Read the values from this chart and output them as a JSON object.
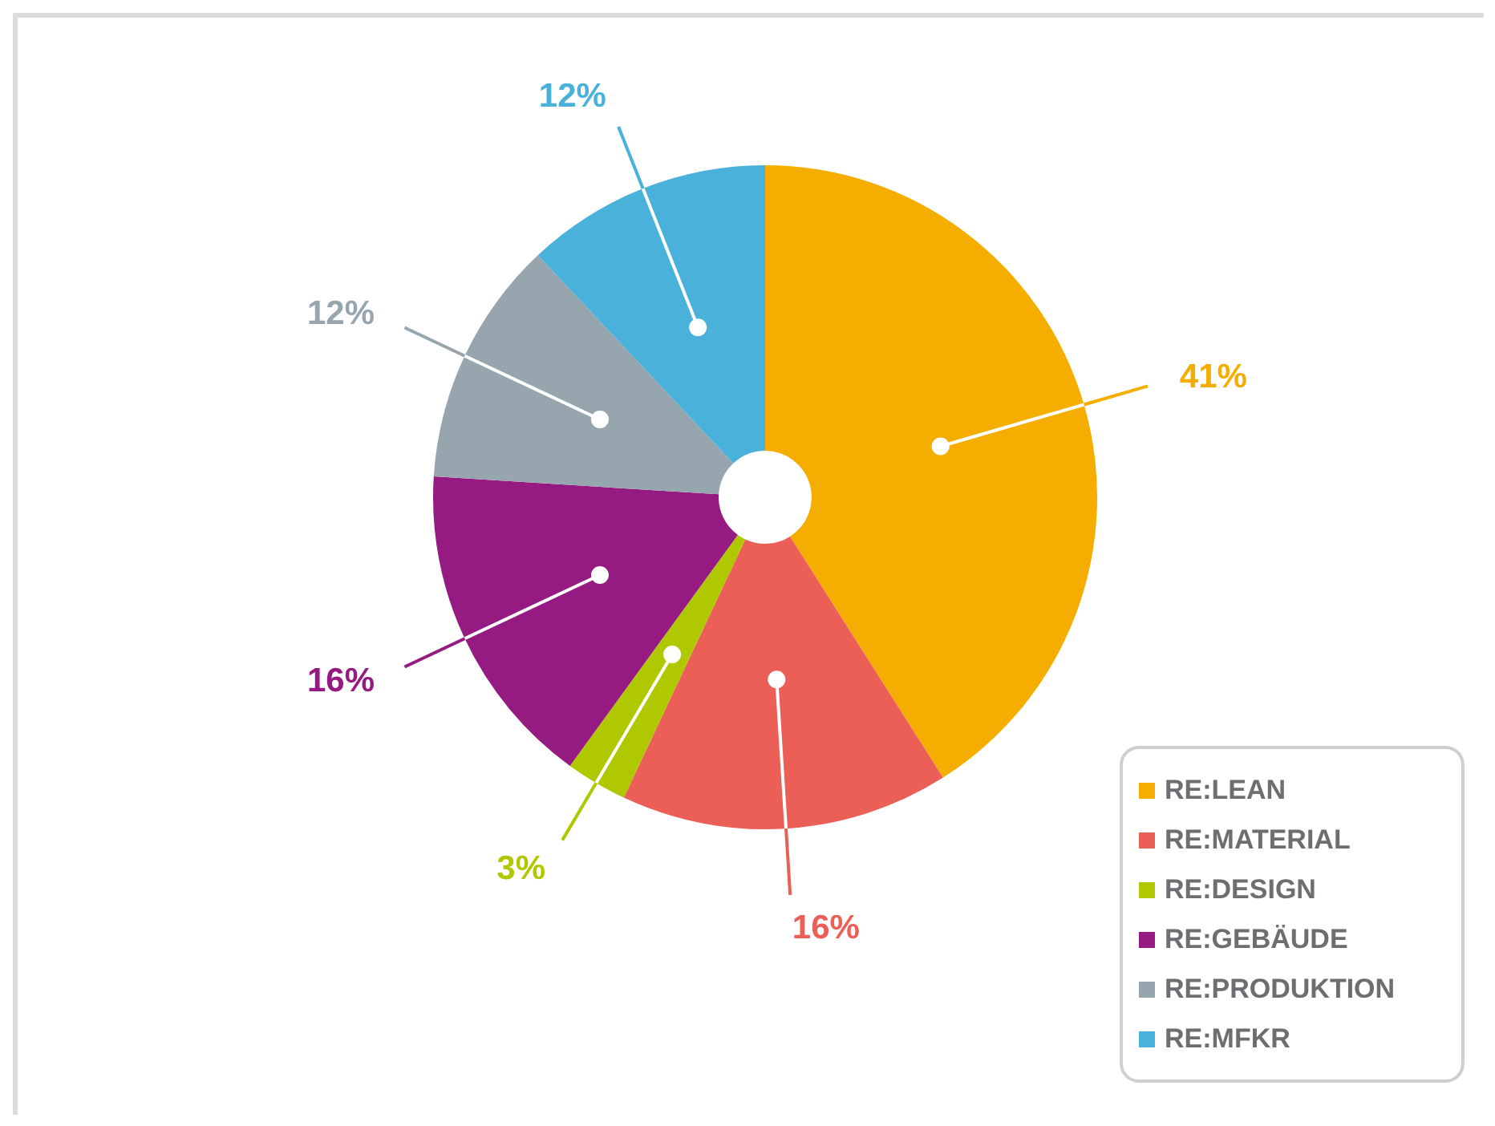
{
  "chart_data": {
    "type": "donut",
    "categories": [
      "RE:LEAN",
      "RE:MATERIAL",
      "RE:DESIGN",
      "RE:GEBÄUDE",
      "RE:PRODUKTION",
      "RE:MFKR"
    ],
    "values": [
      41,
      16,
      3,
      16,
      12,
      12
    ],
    "colors": [
      "#f5ae00",
      "#eb5f57",
      "#b0c800",
      "#951a81",
      "#97a6ae",
      "#4ab1da"
    ],
    "value_labels": [
      "41%",
      "16%",
      "3%",
      "16%",
      "12%",
      "12%"
    ],
    "legend": "bottom right"
  }
}
